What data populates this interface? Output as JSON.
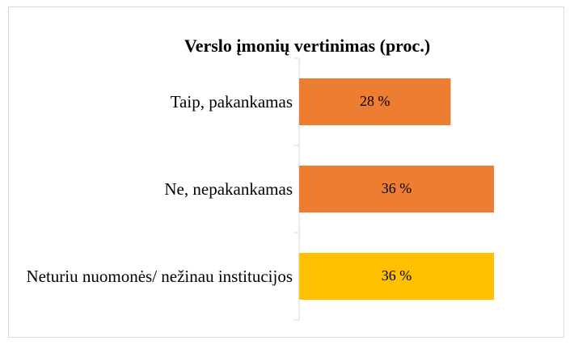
{
  "chart_data": {
    "type": "bar",
    "orientation": "horizontal",
    "title": "Verslo įmonių vertinimas (proc.)",
    "categories": [
      "Taip, pakankamas",
      "Ne, nepakankamas",
      "Neturiu nuomonės/ nežinau institucijos"
    ],
    "values": [
      28,
      36,
      36
    ],
    "value_labels": [
      "28 %",
      "36 %",
      "36 %"
    ],
    "colors": [
      "#ED7D31",
      "#ED7D31",
      "#FFC000"
    ]
  }
}
